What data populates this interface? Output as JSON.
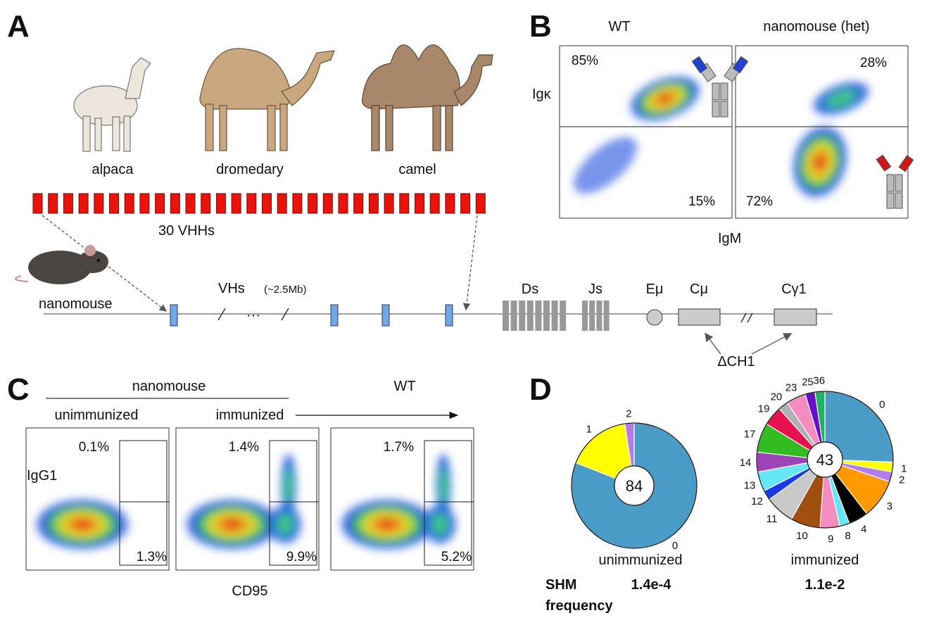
{
  "panels": {
    "A": {
      "letter": "A",
      "animals": [
        "alpaca",
        "dromedary",
        "camel"
      ],
      "vhh_count_label": "30 VHHs",
      "vhh_box_count": 30,
      "vhh_color": "#e8140c",
      "mouse_label": "nanomouse",
      "locus": {
        "vhs_label": "VHs",
        "vhs_size": "(~2.5Mb)",
        "ellipsis": "···",
        "ds_label": "Ds",
        "js_label": "Js",
        "emu_label": "Eμ",
        "cmu_label": "Cμ",
        "cg1_label": "Cγ1",
        "deletion_label": "ΔCH1",
        "vh_color": "#6fa8e6",
        "segment_color": "#999999"
      }
    },
    "B": {
      "letter": "B",
      "titles": [
        "WT",
        "nanomouse (het)"
      ],
      "y_label": "Igκ",
      "x_label": "IgM",
      "wt_upper": "85%",
      "wt_lower": "15%",
      "nano_upper": "28%",
      "nano_lower": "72%"
    },
    "C": {
      "letter": "C",
      "group_label": "nanomouse",
      "wt_label": "WT",
      "unimmunized_label": "unimmunized",
      "immunized_label": "immunized",
      "y_label": "IgG1",
      "x_label": "CD95",
      "plots": [
        {
          "upper": "0.1%",
          "lower": "1.3%"
        },
        {
          "upper": "1.4%",
          "lower": "9.9%"
        },
        {
          "upper": "1.7%",
          "lower": "5.2%"
        }
      ]
    },
    "D": {
      "letter": "D",
      "shm_label": "SHM",
      "frequency_label": "frequency",
      "pies": [
        {
          "label": "unimmunized",
          "total": "84",
          "shm": "1.4e-4",
          "slices": [
            {
              "mutations": "0",
              "count": 68,
              "color": "#4a9cc6"
            },
            {
              "mutations": "1",
              "count": 14,
              "color": "#ffff00"
            },
            {
              "mutations": "2",
              "count": 2,
              "color": "#b57be8"
            }
          ]
        },
        {
          "label": "immunized",
          "total": "43",
          "shm": "1.1e-2",
          "slices": [
            {
              "mutations": "0",
              "count": 11,
              "color": "#4a9cc6"
            },
            {
              "mutations": "1",
              "count": 1,
              "color": "#ffff00"
            },
            {
              "mutations": "2",
              "count": 1,
              "color": "#b57be8"
            },
            {
              "mutations": "3",
              "count": 4,
              "color": "#ff9900"
            },
            {
              "mutations": "4",
              "count": 2,
              "color": "#000000"
            },
            {
              "mutations": "8",
              "count": 1,
              "color": "#66e6f5"
            },
            {
              "mutations": "9",
              "count": 2,
              "color": "#f58cc0"
            },
            {
              "mutations": "10",
              "count": 3,
              "color": "#a04f10"
            },
            {
              "mutations": "11",
              "count": 3,
              "color": "#c8c8c8"
            },
            {
              "mutations": "12",
              "count": 1,
              "color": "#1a3ae8"
            },
            {
              "mutations": "13",
              "count": 2,
              "color": "#66e6f5"
            },
            {
              "mutations": "14",
              "count": 2,
              "color": "#9a44b8"
            },
            {
              "mutations": "17",
              "count": 3,
              "color": "#33bb22"
            },
            {
              "mutations": "19",
              "count": 2,
              "color": "#e8114f"
            },
            {
              "mutations": "20",
              "count": 1,
              "color": "#b0b0b0"
            },
            {
              "mutations": "23",
              "count": 2,
              "color": "#f58cc0"
            },
            {
              "mutations": "25",
              "count": 1,
              "color": "#6610cc"
            },
            {
              "mutations": "36",
              "count": 1,
              "color": "#22b066"
            }
          ]
        }
      ]
    }
  }
}
